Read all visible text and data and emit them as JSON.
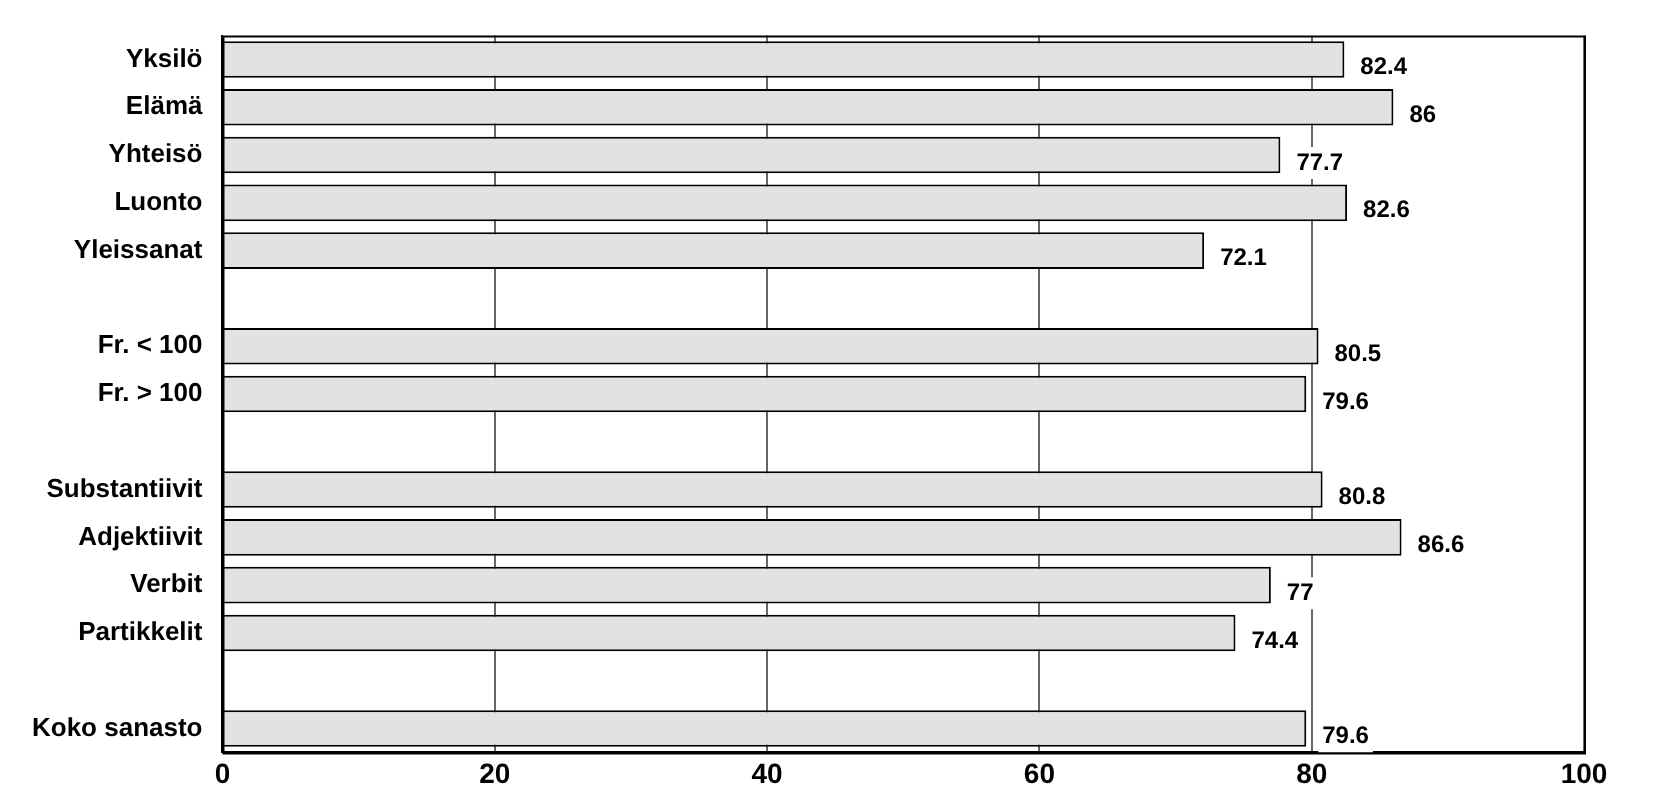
{
  "chart_data": {
    "type": "bar",
    "orientation": "horizontal",
    "categories": [
      "Yksilö",
      "Elämä",
      "Yhteisö",
      "Luonto",
      "Yleissanat",
      null,
      "Fr. < 100",
      "Fr. > 100",
      null,
      "Substantiivit",
      "Adjektiivit",
      "Verbit",
      "Partikkelit",
      null,
      "Koko sanasto"
    ],
    "values": [
      82.4,
      86,
      77.7,
      82.6,
      72.1,
      null,
      80.5,
      79.6,
      null,
      80.8,
      86.6,
      77,
      74.4,
      null,
      79.6
    ],
    "color": "#e2e2e2",
    "xlim": [
      0,
      100
    ],
    "xticks": [
      0,
      20,
      40,
      60,
      80,
      100
    ],
    "grid": "x",
    "legend": false,
    "data_labels": true
  }
}
